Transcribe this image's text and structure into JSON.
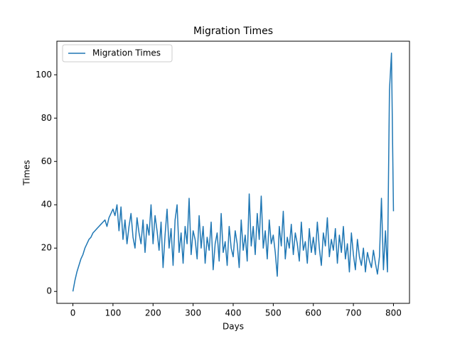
{
  "chart_data": {
    "type": "line",
    "title": "Migration Times",
    "xlabel": "Days",
    "ylabel": "Times",
    "x": [
      0,
      5,
      10,
      15,
      20,
      25,
      30,
      35,
      40,
      45,
      50,
      55,
      60,
      65,
      70,
      75,
      80,
      85,
      90,
      95,
      100,
      105,
      110,
      115,
      120,
      125,
      130,
      135,
      140,
      145,
      150,
      155,
      160,
      165,
      170,
      175,
      180,
      185,
      190,
      195,
      200,
      205,
      210,
      215,
      220,
      225,
      230,
      235,
      240,
      245,
      250,
      255,
      260,
      265,
      270,
      275,
      280,
      285,
      290,
      295,
      300,
      305,
      310,
      315,
      320,
      325,
      330,
      335,
      340,
      345,
      350,
      355,
      360,
      365,
      370,
      375,
      380,
      385,
      390,
      395,
      400,
      405,
      410,
      415,
      420,
      425,
      430,
      435,
      440,
      445,
      450,
      455,
      460,
      465,
      470,
      475,
      480,
      485,
      490,
      495,
      500,
      505,
      510,
      515,
      520,
      525,
      530,
      535,
      540,
      545,
      550,
      555,
      560,
      565,
      570,
      575,
      580,
      585,
      590,
      595,
      600,
      605,
      610,
      615,
      620,
      625,
      630,
      635,
      640,
      645,
      650,
      655,
      660,
      665,
      670,
      675,
      680,
      685,
      690,
      695,
      700,
      705,
      710,
      715,
      720,
      725,
      730,
      735,
      740,
      745,
      750,
      755,
      760,
      765,
      770,
      775,
      780,
      785,
      790,
      795,
      800
    ],
    "series": [
      {
        "name": "Migration Times",
        "color": "#1f77b4",
        "values": [
          0,
          5,
          9,
          12,
          15,
          17,
          20,
          22,
          24,
          25,
          27,
          28,
          29,
          30,
          31,
          32,
          33,
          30,
          34,
          36,
          38,
          35,
          40,
          28,
          39,
          24,
          33,
          22,
          30,
          36,
          25,
          20,
          34,
          27,
          22,
          33,
          18,
          31,
          26,
          40,
          22,
          35,
          28,
          19,
          32,
          11,
          26,
          38,
          20,
          29,
          12,
          33,
          40,
          18,
          27,
          13,
          30,
          22,
          43,
          17,
          28,
          24,
          15,
          35,
          20,
          30,
          13,
          25,
          19,
          32,
          10,
          22,
          27,
          14,
          36,
          18,
          23,
          12,
          30,
          20,
          16,
          28,
          22,
          11,
          33,
          19,
          26,
          14,
          45,
          21,
          30,
          17,
          36,
          24,
          44,
          20,
          28,
          15,
          33,
          22,
          26,
          18,
          7,
          30,
          21,
          37,
          15,
          25,
          20,
          31,
          17,
          27,
          22,
          14,
          32,
          19,
          23,
          13,
          29,
          18,
          25,
          17,
          32,
          20,
          12,
          27,
          21,
          34,
          16,
          24,
          19,
          29,
          13,
          26,
          18,
          30,
          15,
          22,
          9,
          27,
          17,
          10,
          24,
          16,
          12,
          20,
          9,
          18,
          14,
          11,
          19,
          13,
          8,
          16,
          43,
          10,
          28,
          9,
          93,
          110,
          37
        ]
      }
    ],
    "xlim": [
      -40,
      840
    ],
    "ylim": [
      -5.5,
      115.5
    ],
    "xticks": [
      0,
      100,
      200,
      300,
      400,
      500,
      600,
      700,
      800
    ],
    "yticks": [
      0,
      20,
      40,
      60,
      80,
      100
    ],
    "legend": "upper left"
  }
}
